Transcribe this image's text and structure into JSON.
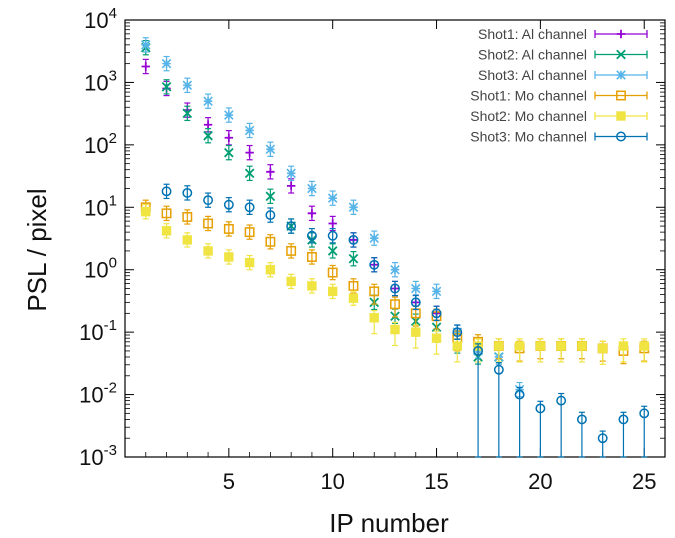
{
  "chart_data": {
    "type": "scatter",
    "title": "",
    "xlabel": "IP  number",
    "ylabel": "PSL / pixel",
    "xlim": [
      0,
      26
    ],
    "ylim": [
      0.001,
      10000
    ],
    "yscale": "log",
    "grid": false,
    "legend_position": "top-right",
    "x_ticks": [
      5,
      10,
      15,
      20,
      25
    ],
    "y_ticks": [
      {
        "value": 0.001,
        "base": "10",
        "exp": "-3"
      },
      {
        "value": 0.01,
        "base": "10",
        "exp": "-2"
      },
      {
        "value": 0.1,
        "base": "10",
        "exp": "-1"
      },
      {
        "value": 1,
        "base": "10",
        "exp": "0"
      },
      {
        "value": 10,
        "base": "10",
        "exp": "1"
      },
      {
        "value": 100,
        "base": "10",
        "exp": "2"
      },
      {
        "value": 1000,
        "base": "10",
        "exp": "3"
      },
      {
        "value": 10000,
        "base": "10",
        "exp": "4"
      }
    ],
    "series": [
      {
        "name": "Shot1: Al channel",
        "color": "#9400d3",
        "marker": "plus",
        "points": [
          [
            1,
            1800
          ],
          [
            2,
            800
          ],
          [
            3,
            360
          ],
          [
            4,
            210
          ],
          [
            5,
            130
          ],
          [
            6,
            75
          ],
          [
            7,
            37
          ],
          [
            8,
            22
          ],
          [
            9,
            8
          ],
          [
            10,
            5.5
          ],
          [
            11,
            3
          ],
          [
            12,
            1.2
          ],
          [
            13,
            0.5
          ],
          [
            14,
            0.3
          ],
          [
            15,
            0.2
          ],
          [
            16,
            0.1
          ]
        ],
        "err": [
          [
            1,
            0.08
          ],
          [
            2,
            0.1
          ],
          [
            3,
            0.1
          ],
          [
            4,
            0.1
          ],
          [
            5,
            0.1
          ],
          [
            6,
            0.1
          ],
          [
            7,
            0.1
          ],
          [
            8,
            0.1
          ],
          [
            9,
            0.15
          ],
          [
            10,
            0.15
          ],
          [
            11,
            0.15
          ],
          [
            12,
            0.2
          ],
          [
            13,
            0.25
          ],
          [
            14,
            0.25
          ],
          [
            15,
            0.3
          ],
          [
            16,
            0.3
          ]
        ]
      },
      {
        "name": "Shot2: Al channel",
        "color": "#009e73",
        "marker": "x",
        "points": [
          [
            1,
            3600
          ],
          [
            2,
            850
          ],
          [
            3,
            320
          ],
          [
            4,
            140
          ],
          [
            5,
            75
          ],
          [
            6,
            35
          ],
          [
            7,
            15
          ],
          [
            8,
            5
          ],
          [
            9,
            3
          ],
          [
            10,
            2
          ],
          [
            11,
            1.5
          ],
          [
            12,
            0.3
          ],
          [
            13,
            0.18
          ],
          [
            14,
            0.15
          ],
          [
            15,
            0.12
          ],
          [
            16,
            0.06
          ],
          [
            17,
            0.04
          ],
          [
            18,
            0.04
          ]
        ],
        "err": []
      },
      {
        "name": "Shot3: Al channel",
        "color": "#56b4e9",
        "marker": "star",
        "points": [
          [
            1,
            4000
          ],
          [
            2,
            2000
          ],
          [
            3,
            900
          ],
          [
            4,
            500
          ],
          [
            5,
            300
          ],
          [
            6,
            170
          ],
          [
            7,
            85
          ],
          [
            8,
            35
          ],
          [
            9,
            20
          ],
          [
            10,
            14
          ],
          [
            11,
            10
          ],
          [
            12,
            3.2
          ],
          [
            13,
            1
          ],
          [
            14,
            0.5
          ],
          [
            15,
            0.45
          ],
          [
            16,
            0.1
          ],
          [
            17,
            0.05
          ],
          [
            18,
            0.04
          ],
          [
            19,
            0.012
          ]
        ],
        "err": []
      },
      {
        "name": "Shot1: Mo channel",
        "color": "#e69f00",
        "marker": "open-square",
        "points": [
          [
            1,
            10
          ],
          [
            2,
            8
          ],
          [
            3,
            7
          ],
          [
            4,
            5.5
          ],
          [
            5,
            4.5
          ],
          [
            6,
            4
          ],
          [
            7,
            2.8
          ],
          [
            8,
            2
          ],
          [
            9,
            1.6
          ],
          [
            10,
            0.9
          ],
          [
            11,
            0.55
          ],
          [
            12,
            0.45
          ],
          [
            13,
            0.28
          ],
          [
            14,
            0.2
          ],
          [
            15,
            0.18
          ],
          [
            16,
            0.08
          ],
          [
            17,
            0.07
          ],
          [
            18,
            0.06
          ],
          [
            19,
            0.055
          ],
          [
            20,
            0.06
          ],
          [
            21,
            0.06
          ],
          [
            22,
            0.06
          ],
          [
            23,
            0.055
          ],
          [
            24,
            0.05
          ],
          [
            25,
            0.055
          ]
        ],
        "err": []
      },
      {
        "name": "Shot2: Mo channel",
        "color": "#f0e442",
        "marker": "filled-square",
        "points": [
          [
            1,
            8.5
          ],
          [
            2,
            4.2
          ],
          [
            3,
            3
          ],
          [
            4,
            2
          ],
          [
            5,
            1.6
          ],
          [
            6,
            1.3
          ],
          [
            7,
            1
          ],
          [
            8,
            0.65
          ],
          [
            9,
            0.55
          ],
          [
            10,
            0.45
          ],
          [
            11,
            0.35
          ],
          [
            12,
            0.17
          ],
          [
            13,
            0.11
          ],
          [
            14,
            0.1
          ],
          [
            15,
            0.08
          ],
          [
            16,
            0.06
          ],
          [
            17,
            0.06
          ],
          [
            18,
            0.06
          ],
          [
            19,
            0.06
          ],
          [
            20,
            0.06
          ],
          [
            21,
            0.06
          ],
          [
            22,
            0.06
          ],
          [
            23,
            0.055
          ],
          [
            24,
            0.06
          ],
          [
            25,
            0.06
          ]
        ],
        "err": []
      },
      {
        "name": "Shot3: Mo channel",
        "color": "#0072b2",
        "marker": "open-circle",
        "points": [
          [
            2,
            18
          ],
          [
            3,
            17
          ],
          [
            4,
            13
          ],
          [
            5,
            11
          ],
          [
            6,
            10
          ],
          [
            7,
            7.5
          ],
          [
            8,
            5
          ],
          [
            9,
            3.5
          ],
          [
            10,
            3.5
          ],
          [
            11,
            3
          ],
          [
            12,
            1.2
          ],
          [
            13,
            0.5
          ],
          [
            14,
            0.3
          ],
          [
            15,
            0.2
          ],
          [
            16,
            0.1
          ],
          [
            17,
            0.05
          ],
          [
            18,
            0.025
          ],
          [
            19,
            0.01
          ],
          [
            20,
            0.006
          ],
          [
            21,
            0.008
          ],
          [
            22,
            0.004
          ],
          [
            23,
            0.002
          ],
          [
            24,
            0.004
          ],
          [
            25,
            0.005
          ]
        ],
        "err": []
      }
    ]
  }
}
